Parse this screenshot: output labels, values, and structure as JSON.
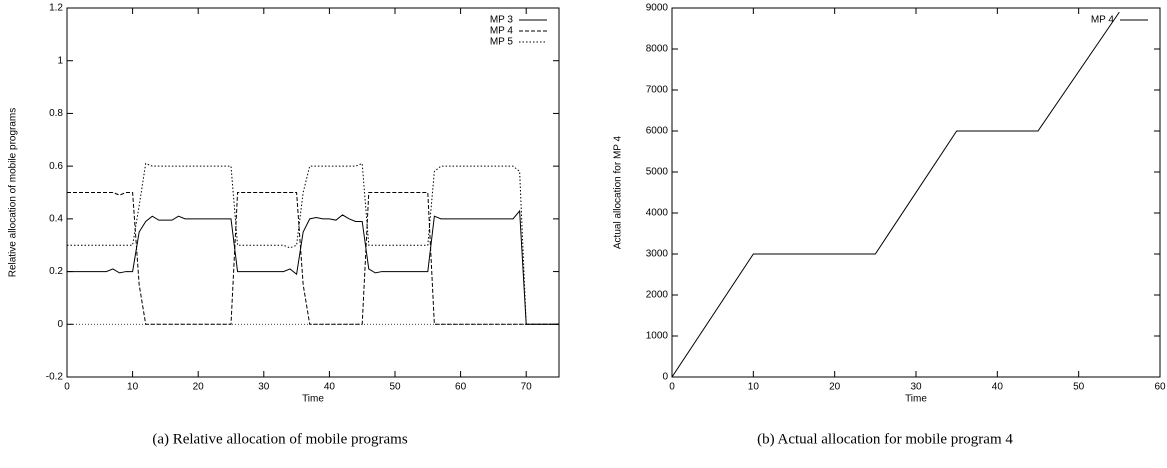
{
  "chart_data": [
    {
      "type": "line",
      "caption": "(a) Relative allocation of mobile programs",
      "xlabel": "Time",
      "ylabel": "Relative allocation of mobile programs",
      "xlim": [
        0,
        75
      ],
      "xticks": [
        0,
        10,
        20,
        30,
        40,
        50,
        60,
        70
      ],
      "ylim": [
        -0.2,
        1.2
      ],
      "yticks": [
        -0.2,
        0,
        0.2,
        0.4,
        0.6,
        0.8,
        1,
        1.2
      ],
      "legend": "top-right",
      "x": [
        0,
        1,
        2,
        3,
        4,
        5,
        6,
        7,
        8,
        9,
        10,
        11,
        12,
        13,
        14,
        15,
        16,
        17,
        18,
        19,
        20,
        21,
        22,
        23,
        24,
        25,
        26,
        27,
        28,
        29,
        30,
        31,
        32,
        33,
        34,
        35,
        36,
        37,
        38,
        39,
        40,
        41,
        42,
        43,
        44,
        45,
        46,
        47,
        48,
        49,
        50,
        51,
        52,
        53,
        54,
        55,
        56,
        57,
        58,
        59,
        60,
        61,
        62,
        63,
        64,
        65,
        66,
        67,
        68,
        69,
        70,
        71,
        72,
        73,
        74,
        75
      ],
      "series": [
        {
          "name": "MP 3",
          "color": "#000000",
          "dash": "solid",
          "values": [
            0.2,
            0.2,
            0.2,
            0.2,
            0.2,
            0.2,
            0.2,
            0.21,
            0.195,
            0.2,
            0.2,
            0.35,
            0.39,
            0.41,
            0.395,
            0.395,
            0.395,
            0.41,
            0.4,
            0.4,
            0.4,
            0.4,
            0.4,
            0.4,
            0.4,
            0.4,
            0.2,
            0.2,
            0.2,
            0.2,
            0.2,
            0.2,
            0.2,
            0.2,
            0.21,
            0.19,
            0.35,
            0.4,
            0.405,
            0.4,
            0.4,
            0.395,
            0.415,
            0.4,
            0.39,
            0.39,
            0.21,
            0.195,
            0.2,
            0.2,
            0.2,
            0.2,
            0.2,
            0.2,
            0.2,
            0.2,
            0.41,
            0.4,
            0.4,
            0.4,
            0.4,
            0.4,
            0.4,
            0.4,
            0.4,
            0.4,
            0.4,
            0.4,
            0.4,
            0.43,
            0,
            0,
            0,
            0,
            0,
            0
          ]
        },
        {
          "name": "MP 4",
          "color": "#000000",
          "dash": "dashed",
          "values": [
            0.5,
            0.5,
            0.5,
            0.5,
            0.5,
            0.5,
            0.5,
            0.5,
            0.49,
            0.5,
            0.5,
            0.15,
            0,
            0,
            0,
            0,
            0,
            0,
            0,
            0,
            0,
            0,
            0,
            0,
            0,
            0,
            0.5,
            0.5,
            0.5,
            0.5,
            0.5,
            0.5,
            0.5,
            0.5,
            0.5,
            0.5,
            0.15,
            0,
            0,
            0,
            0,
            0,
            0,
            0,
            0,
            0,
            0.5,
            0.5,
            0.5,
            0.5,
            0.5,
            0.5,
            0.5,
            0.5,
            0.5,
            0.5,
            0,
            0,
            0,
            0,
            0,
            0,
            0,
            0,
            0,
            0,
            0,
            0,
            0,
            0,
            0,
            0,
            0,
            0,
            0,
            0
          ]
        },
        {
          "name": "MP 5",
          "color": "#000000",
          "dash": "dotted",
          "values": [
            0.3,
            0.3,
            0.3,
            0.3,
            0.3,
            0.3,
            0.3,
            0.3,
            0.3,
            0.3,
            0.3,
            0.45,
            0.61,
            0.6,
            0.6,
            0.6,
            0.6,
            0.6,
            0.6,
            0.6,
            0.6,
            0.6,
            0.6,
            0.6,
            0.6,
            0.6,
            0.3,
            0.3,
            0.3,
            0.3,
            0.3,
            0.3,
            0.3,
            0.3,
            0.29,
            0.3,
            0.5,
            0.6,
            0.6,
            0.6,
            0.6,
            0.6,
            0.6,
            0.6,
            0.6,
            0.61,
            0.3,
            0.3,
            0.3,
            0.3,
            0.3,
            0.3,
            0.3,
            0.3,
            0.3,
            0.3,
            0.58,
            0.6,
            0.6,
            0.6,
            0.6,
            0.6,
            0.6,
            0.6,
            0.6,
            0.6,
            0.6,
            0.6,
            0.6,
            0.58,
            0,
            0,
            0,
            0,
            0,
            0
          ]
        }
      ]
    },
    {
      "type": "line",
      "caption": "(b) Actual allocation for mobile program 4",
      "xlabel": "Time",
      "ylabel": "Actual allocation for MP 4",
      "xlim": [
        0,
        60
      ],
      "xticks": [
        0,
        10,
        20,
        30,
        40,
        50,
        60
      ],
      "ylim": [
        0,
        9000
      ],
      "yticks": [
        0,
        1000,
        2000,
        3000,
        4000,
        5000,
        6000,
        7000,
        8000,
        9000
      ],
      "legend": "top-right",
      "x": [
        0,
        10,
        25,
        35,
        45,
        55
      ],
      "series": [
        {
          "name": "MP 4",
          "color": "#000000",
          "dash": "solid",
          "values": [
            0,
            3000,
            3000,
            6000,
            6000,
            8900
          ]
        }
      ]
    }
  ]
}
